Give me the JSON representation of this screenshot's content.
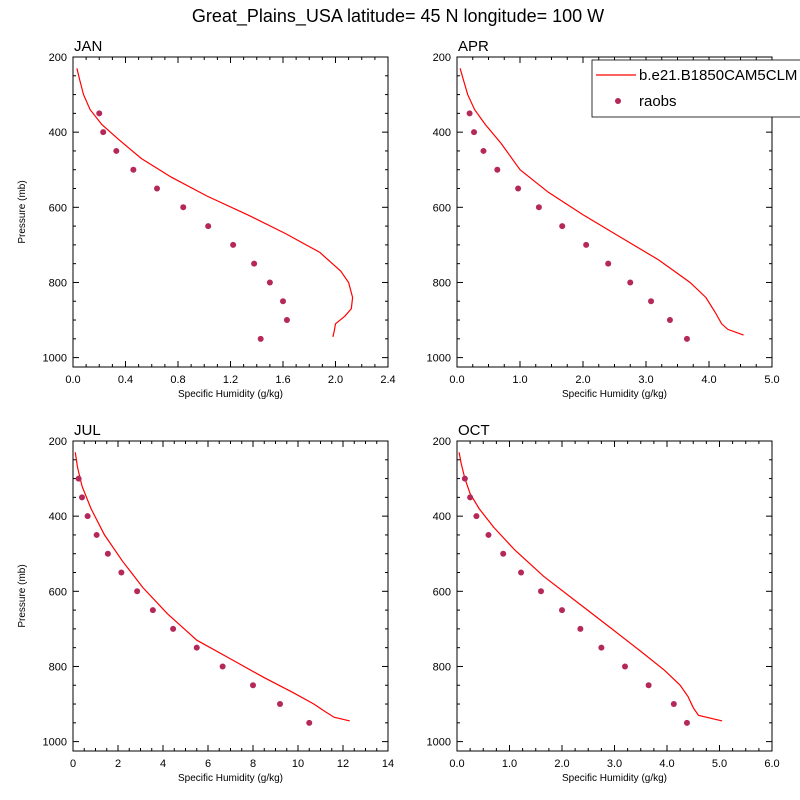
{
  "title": "Great_Plains_USA  latitude= 45 N longitude= 100 W",
  "colors": {
    "model": "#ff0000",
    "obs": "#b5285a",
    "frame": "#000000"
  },
  "legend": {
    "model_label": "b.e21.B1850CAM5CLM",
    "obs_label": "raobs",
    "location": "top-right"
  },
  "chart_data": [
    {
      "type": "line",
      "title": "JAN",
      "xlabel": "Specific Humidity (g/kg)",
      "ylabel": "Pressure (mb)",
      "xlim": [
        0,
        2.4
      ],
      "xticks": [
        "0.0",
        "0.4",
        "0.8",
        "1.2",
        "1.6",
        "2.0",
        "2.4"
      ],
      "ylim": [
        200,
        1025
      ],
      "yticks": [
        "200",
        "400",
        "600",
        "800",
        "1000"
      ],
      "y_inverted": true,
      "series": [
        {
          "name": "b.e21.B1850CAM5CLM",
          "kind": "line",
          "x": [
            0.03,
            0.05,
            0.08,
            0.13,
            0.22,
            0.35,
            0.52,
            0.75,
            1.02,
            1.33,
            1.62,
            1.88,
            2.04,
            2.1,
            2.13,
            2.12,
            2.07,
            2.0,
            1.99,
            1.98
          ],
          "y": [
            230,
            260,
            300,
            340,
            380,
            420,
            470,
            520,
            570,
            620,
            670,
            720,
            770,
            800,
            840,
            870,
            890,
            910,
            930,
            945
          ]
        },
        {
          "name": "raobs",
          "kind": "scatter",
          "x": [
            0.2,
            0.23,
            0.33,
            0.46,
            0.64,
            0.84,
            1.03,
            1.22,
            1.38,
            1.5,
            1.6,
            1.63,
            1.43
          ],
          "y": [
            350,
            400,
            450,
            500,
            550,
            600,
            650,
            700,
            750,
            800,
            850,
            900,
            950
          ]
        }
      ]
    },
    {
      "type": "line",
      "title": "APR",
      "xlabel": "Specific Humidity (g/kg)",
      "ylabel": "",
      "xlim": [
        0,
        5
      ],
      "xticks": [
        "0.0",
        "1.0",
        "2.0",
        "3.0",
        "4.0",
        "5.0"
      ],
      "ylim": [
        200,
        1025
      ],
      "yticks": [
        "200",
        "400",
        "600",
        "800",
        "1000"
      ],
      "y_inverted": true,
      "series": [
        {
          "name": "b.e21.B1850CAM5CLM",
          "kind": "line",
          "x": [
            0.05,
            0.1,
            0.17,
            0.28,
            0.45,
            0.7,
            1.0,
            1.45,
            2.0,
            2.6,
            3.2,
            3.7,
            3.95,
            4.1,
            4.2,
            4.3,
            4.55
          ],
          "y": [
            230,
            260,
            300,
            340,
            380,
            430,
            500,
            560,
            620,
            680,
            740,
            800,
            840,
            880,
            910,
            925,
            940
          ]
        },
        {
          "name": "raobs",
          "kind": "scatter",
          "x": [
            0.2,
            0.27,
            0.42,
            0.64,
            0.97,
            1.3,
            1.67,
            2.05,
            2.4,
            2.75,
            3.08,
            3.38,
            3.65
          ],
          "y": [
            350,
            400,
            450,
            500,
            550,
            600,
            650,
            700,
            750,
            800,
            850,
            900,
            950
          ]
        }
      ]
    },
    {
      "type": "line",
      "title": "JUL",
      "xlabel": "Specific Humidity (g/kg)",
      "ylabel": "Pressure (mb)",
      "xlim": [
        0,
        14
      ],
      "xticks": [
        "0",
        "2",
        "4",
        "6",
        "8",
        "10",
        "12",
        "14"
      ],
      "ylim": [
        200,
        1025
      ],
      "yticks": [
        "200",
        "400",
        "600",
        "800",
        "1000"
      ],
      "y_inverted": true,
      "series": [
        {
          "name": "b.e21.B1850CAM5CLM",
          "kind": "line",
          "x": [
            0.1,
            0.2,
            0.4,
            0.8,
            1.4,
            2.2,
            3.1,
            4.2,
            5.5,
            7.0,
            8.5,
            9.8,
            10.7,
            11.2,
            11.6,
            12.3
          ],
          "y": [
            230,
            270,
            320,
            380,
            450,
            520,
            590,
            660,
            730,
            780,
            830,
            870,
            900,
            920,
            935,
            945
          ]
        },
        {
          "name": "raobs",
          "kind": "scatter",
          "x": [
            0.25,
            0.4,
            0.65,
            1.05,
            1.55,
            2.15,
            2.85,
            3.55,
            4.45,
            5.5,
            6.65,
            8.0,
            9.2,
            10.5
          ],
          "y": [
            300,
            350,
            400,
            450,
            500,
            550,
            600,
            650,
            700,
            750,
            800,
            850,
            900,
            950
          ]
        }
      ]
    },
    {
      "type": "line",
      "title": "OCT",
      "xlabel": "Specific Humidity (g/kg)",
      "ylabel": "",
      "xlim": [
        0,
        6
      ],
      "xticks": [
        "0.0",
        "1.0",
        "2.0",
        "3.0",
        "4.0",
        "5.0",
        "6.0"
      ],
      "ylim": [
        200,
        1025
      ],
      "yticks": [
        "200",
        "400",
        "600",
        "800",
        "1000"
      ],
      "y_inverted": true,
      "series": [
        {
          "name": "b.e21.B1850CAM5CLM",
          "kind": "line",
          "x": [
            0.04,
            0.08,
            0.15,
            0.25,
            0.42,
            0.7,
            1.1,
            1.65,
            2.3,
            2.95,
            3.5,
            3.95,
            4.25,
            4.4,
            4.5,
            4.6,
            5.05
          ],
          "y": [
            230,
            260,
            300,
            340,
            380,
            430,
            490,
            560,
            630,
            700,
            760,
            810,
            850,
            880,
            910,
            930,
            945
          ]
        },
        {
          "name": "raobs",
          "kind": "scatter",
          "x": [
            0.15,
            0.25,
            0.37,
            0.6,
            0.88,
            1.22,
            1.6,
            2.0,
            2.35,
            2.75,
            3.2,
            3.65,
            4.13,
            4.38
          ],
          "y": [
            300,
            350,
            400,
            450,
            500,
            550,
            600,
            650,
            700,
            750,
            800,
            850,
            900,
            950
          ]
        }
      ]
    }
  ]
}
